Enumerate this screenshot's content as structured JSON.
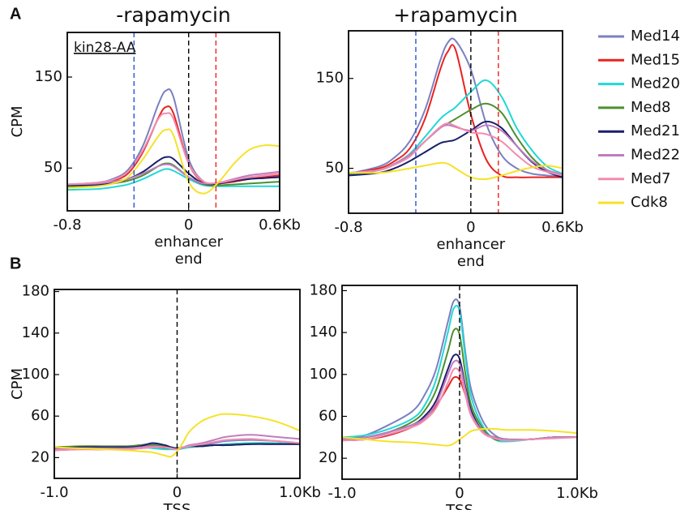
{
  "panel_labels": [
    "A",
    "B"
  ],
  "legend": [
    {
      "name": "Med14",
      "color": "#7b80c0"
    },
    {
      "name": "Med15",
      "color": "#e8231f"
    },
    {
      "name": "Med20",
      "color": "#21d7d7"
    },
    {
      "name": "Med8",
      "color": "#4d8f2f"
    },
    {
      "name": "Med21",
      "color": "#1a1f6b"
    },
    {
      "name": "Med22",
      "color": "#c07cc0"
    },
    {
      "name": "Med7",
      "color": "#f08cb0"
    },
    {
      "name": "Cdk8",
      "color": "#f5e228"
    }
  ],
  "chart_data": [
    {
      "type": "line",
      "title": "-rapamycin",
      "annotation": "kin28-AA",
      "ylabel": "CPM",
      "xlabel": [
        "enhancer",
        "end"
      ],
      "xlim": [
        -0.8,
        0.6
      ],
      "ylim": [
        3,
        199
      ],
      "xticks": [
        -0.8,
        0,
        {
          "value": 0.6,
          "label": "0.6Kb"
        }
      ],
      "yticks": [
        50,
        150
      ],
      "vlines": [
        {
          "x": -0.36,
          "color": "#2a52d8"
        },
        {
          "x": 0,
          "color": "#000000"
        },
        {
          "x": 0.18,
          "color": "#e8231f"
        }
      ],
      "x": [
        -0.8,
        -0.6,
        -0.5,
        -0.4,
        -0.3,
        -0.2,
        -0.15,
        -0.1,
        0,
        0.1,
        0.2,
        0.3,
        0.4,
        0.5,
        0.6
      ],
      "series": [
        {
          "values": [
            32,
            34,
            38,
            48,
            75,
            120,
            135,
            128,
            60,
            35,
            33,
            36,
            38,
            39,
            40
          ]
        },
        {
          "values": [
            31,
            33,
            36,
            44,
            68,
            105,
            117,
            110,
            55,
            34,
            33,
            35,
            38,
            40,
            42
          ]
        },
        {
          "values": [
            26,
            27,
            29,
            32,
            38,
            46,
            49,
            47,
            38,
            31,
            30,
            30,
            30,
            30,
            30
          ]
        },
        {
          "values": [
            30,
            31,
            33,
            36,
            42,
            52,
            55,
            53,
            40,
            32,
            31,
            32,
            33,
            34,
            35
          ]
        },
        {
          "values": [
            31,
            32,
            34,
            38,
            46,
            58,
            62,
            60,
            44,
            33,
            33,
            36,
            38,
            39,
            40
          ]
        },
        {
          "values": [
            32,
            33,
            35,
            38,
            44,
            52,
            54,
            52,
            40,
            33,
            34,
            38,
            42,
            44,
            46
          ]
        },
        {
          "values": [
            32,
            34,
            37,
            46,
            70,
            104,
            110,
            104,
            55,
            35,
            34,
            37,
            40,
            42,
            44
          ]
        },
        {
          "values": [
            28,
            30,
            33,
            40,
            60,
            85,
            92,
            86,
            35,
            22,
            35,
            55,
            70,
            75,
            74
          ]
        }
      ]
    },
    {
      "type": "line",
      "title": "+rapamycin",
      "xlabel": [
        "enhancer",
        "end"
      ],
      "xlim": [
        -0.8,
        0.6
      ],
      "ylim": [
        0,
        203
      ],
      "xticks": [
        -0.8,
        0,
        {
          "value": 0.6,
          "label": "0.6Kb"
        }
      ],
      "yticks": [
        50,
        150
      ],
      "vlines": [
        {
          "x": -0.36,
          "color": "#2a52d8"
        },
        {
          "x": 0,
          "color": "#000000"
        },
        {
          "x": 0.18,
          "color": "#e8231f"
        }
      ],
      "x": [
        -0.8,
        -0.6,
        -0.5,
        -0.4,
        -0.3,
        -0.2,
        -0.15,
        -0.1,
        0,
        0.1,
        0.2,
        0.3,
        0.4,
        0.5,
        0.6
      ],
      "series": [
        {
          "values": [
            44,
            52,
            62,
            80,
            115,
            170,
            190,
            192,
            160,
            100,
            65,
            50,
            44,
            42,
            40
          ]
        },
        {
          "values": [
            44,
            50,
            58,
            72,
            105,
            160,
            180,
            182,
            110,
            60,
            42,
            40,
            40,
            40,
            40
          ]
        },
        {
          "values": [
            42,
            48,
            55,
            66,
            85,
            105,
            112,
            118,
            135,
            148,
            130,
            95,
            70,
            52,
            44
          ]
        },
        {
          "values": [
            44,
            48,
            55,
            65,
            80,
            95,
            100,
            105,
            115,
            122,
            112,
            85,
            62,
            48,
            42
          ]
        },
        {
          "values": [
            42,
            45,
            50,
            58,
            68,
            78,
            80,
            82,
            92,
            102,
            95,
            75,
            57,
            46,
            40
          ]
        },
        {
          "values": [
            45,
            48,
            55,
            65,
            80,
            95,
            98,
            96,
            92,
            98,
            92,
            75,
            58,
            48,
            43
          ]
        },
        {
          "values": [
            45,
            48,
            54,
            63,
            80,
            96,
            100,
            97,
            90,
            88,
            80,
            65,
            52,
            46,
            42
          ]
        },
        {
          "values": [
            45,
            45,
            47,
            50,
            53,
            56,
            55,
            50,
            40,
            38,
            42,
            47,
            51,
            53,
            50
          ]
        }
      ]
    },
    {
      "type": "line",
      "ylabel": "CPM",
      "xlabel": [
        "TSS"
      ],
      "xlim": [
        -1,
        1
      ],
      "ylim": [
        0,
        182
      ],
      "xticks": [
        {
          "value": -1,
          "label": "-1.0"
        },
        0,
        {
          "value": 1,
          "label": "1.0Kb"
        }
      ],
      "yticks": [
        20,
        60,
        100,
        140,
        180
      ],
      "vlines": [
        {
          "x": 0,
          "color": "#000000"
        }
      ],
      "x": [
        -1,
        -0.8,
        -0.6,
        -0.4,
        -0.3,
        -0.2,
        -0.1,
        -0.05,
        0,
        0.05,
        0.1,
        0.2,
        0.3,
        0.4,
        0.6,
        0.8,
        1
      ],
      "series": [
        {
          "values": [
            30,
            30,
            30,
            31,
            32,
            33,
            30,
            29,
            28,
            30,
            31,
            32,
            34,
            36,
            37,
            36,
            34
          ]
        },
        {
          "values": [
            27,
            28,
            28,
            29,
            29,
            30,
            29,
            29,
            28,
            29,
            30,
            31,
            32,
            33,
            34,
            34,
            33
          ]
        },
        {
          "values": [
            29,
            30,
            30,
            30,
            30,
            29,
            28,
            28,
            28,
            29,
            30,
            31,
            32,
            33,
            34,
            34,
            33
          ]
        },
        {
          "values": [
            30,
            31,
            31,
            31,
            32,
            32,
            31,
            30,
            29,
            30,
            31,
            31,
            32,
            32,
            33,
            33,
            33
          ]
        },
        {
          "values": [
            29,
            30,
            30,
            30,
            31,
            34,
            32,
            30,
            29,
            30,
            31,
            31,
            32,
            32,
            33,
            33,
            33
          ]
        },
        {
          "values": [
            28,
            29,
            29,
            29,
            30,
            31,
            30,
            29,
            28,
            30,
            32,
            34,
            37,
            40,
            42,
            40,
            38
          ]
        },
        {
          "values": [
            27,
            28,
            28,
            28,
            29,
            30,
            30,
            29,
            28,
            30,
            31,
            33,
            35,
            37,
            38,
            36,
            34
          ]
        },
        {
          "values": [
            30,
            29,
            28,
            27,
            26,
            25,
            22,
            21,
            26,
            35,
            45,
            55,
            60,
            62,
            60,
            55,
            46
          ]
        }
      ]
    },
    {
      "type": "line",
      "xlabel": [
        "TSS"
      ],
      "xlim": [
        -1,
        1
      ],
      "ylim": [
        0,
        185
      ],
      "xticks": [
        {
          "value": -1,
          "label": "-1.0"
        },
        0,
        {
          "value": 1,
          "label": "1.0Kb"
        }
      ],
      "yticks": [
        20,
        60,
        100,
        140,
        180
      ],
      "vlines": [
        {
          "x": 0,
          "color": "#000000"
        }
      ],
      "x": [
        -1,
        -0.8,
        -0.6,
        -0.4,
        -0.3,
        -0.2,
        -0.1,
        -0.05,
        0,
        0.05,
        0.1,
        0.2,
        0.3,
        0.4,
        0.6,
        0.8,
        1
      ],
      "series": [
        {
          "values": [
            38,
            42,
            52,
            65,
            80,
            105,
            150,
            170,
            165,
            120,
            85,
            55,
            42,
            38,
            38,
            40,
            40
          ]
        },
        {
          "values": [
            37,
            38,
            42,
            50,
            58,
            70,
            88,
            97,
            95,
            80,
            62,
            45,
            40,
            38,
            38,
            40,
            40
          ]
        },
        {
          "values": [
            40,
            42,
            48,
            58,
            70,
            95,
            140,
            163,
            160,
            115,
            78,
            50,
            38,
            36,
            38,
            40,
            40
          ]
        },
        {
          "values": [
            38,
            40,
            45,
            55,
            65,
            85,
            122,
            142,
            138,
            100,
            70,
            48,
            38,
            38,
            38,
            40,
            40
          ]
        },
        {
          "values": [
            38,
            40,
            45,
            52,
            60,
            75,
            105,
            118,
            115,
            88,
            65,
            45,
            40,
            38,
            38,
            40,
            40
          ]
        },
        {
          "values": [
            38,
            40,
            45,
            52,
            58,
            72,
            100,
            112,
            110,
            85,
            62,
            45,
            40,
            38,
            38,
            40,
            40
          ]
        },
        {
          "values": [
            37,
            38,
            43,
            50,
            56,
            68,
            92,
            105,
            102,
            80,
            60,
            44,
            39,
            37,
            38,
            39,
            40
          ]
        },
        {
          "values": [
            40,
            38,
            36,
            35,
            34,
            33,
            32,
            34,
            38,
            42,
            46,
            48,
            48,
            47,
            47,
            46,
            44
          ]
        }
      ]
    }
  ]
}
